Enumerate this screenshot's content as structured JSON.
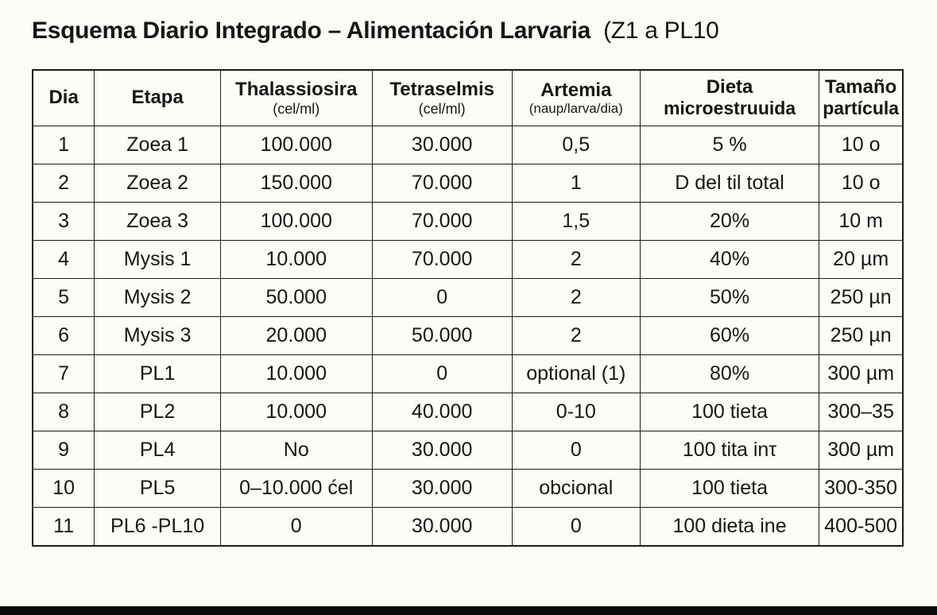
{
  "title": {
    "bold": "Esquema Diario Integrado – Alimentación Larvaria",
    "regular": "(Z1 a PL10"
  },
  "table": {
    "columns": [
      {
        "title": "Dia",
        "subtitle": ""
      },
      {
        "title": "Etapa",
        "subtitle": ""
      },
      {
        "title": "Thalassiosira",
        "subtitle": "(cel/ml)"
      },
      {
        "title": "Tetraselmis",
        "subtitle": "(cel/ml)"
      },
      {
        "title": "Artemia",
        "subtitle": "(naup/larva/dia)"
      },
      {
        "title": "Dieta",
        "subtitle": "microestruuida"
      },
      {
        "title": "Tamaño",
        "subtitle": "partícula"
      }
    ],
    "rows": [
      [
        "1",
        "Zoea 1",
        "100.000",
        "30.000",
        "0,5",
        "5 %",
        "10 o"
      ],
      [
        "2",
        "Zoea 2",
        "150.000",
        "70.000",
        "1",
        "D del til total",
        "10 o"
      ],
      [
        "3",
        "Zoea 3",
        "100.000",
        "70.000",
        "1,5",
        "20%",
        "10 m"
      ],
      [
        "4",
        "Mysis 1",
        "10.000",
        "70.000",
        "2",
        "40%",
        "20 µm"
      ],
      [
        "5",
        "Mysis 2",
        "50.000",
        "0",
        "2",
        "50%",
        "250 µn"
      ],
      [
        "6",
        "Mysis 3",
        "20.000",
        "50.000",
        "2",
        "60%",
        "250 µn"
      ],
      [
        "7",
        "PL1",
        "10.000",
        "0",
        "optional (1)",
        "80%",
        "300 µm"
      ],
      [
        "8",
        "PL2",
        "10.000",
        "40.000",
        "0-10",
        "100 tieta",
        "300–35"
      ],
      [
        "9",
        "PL4",
        "No",
        "30.000",
        "0",
        "100 tita inτ",
        "300 µm"
      ],
      [
        "10",
        "PL5",
        "0–10.000 ćel",
        "30.000",
        "obcional",
        "100 tieta",
        "300-350"
      ],
      [
        "11",
        "PL6 -PL10",
        "0",
        "30.000",
        "0",
        "100 dieta ine",
        "400-500"
      ]
    ]
  },
  "colors": {
    "background": "#fcfcf6",
    "text": "#161616",
    "border": "#1c1c1c",
    "bottom_bar": "#0a0a0a"
  }
}
